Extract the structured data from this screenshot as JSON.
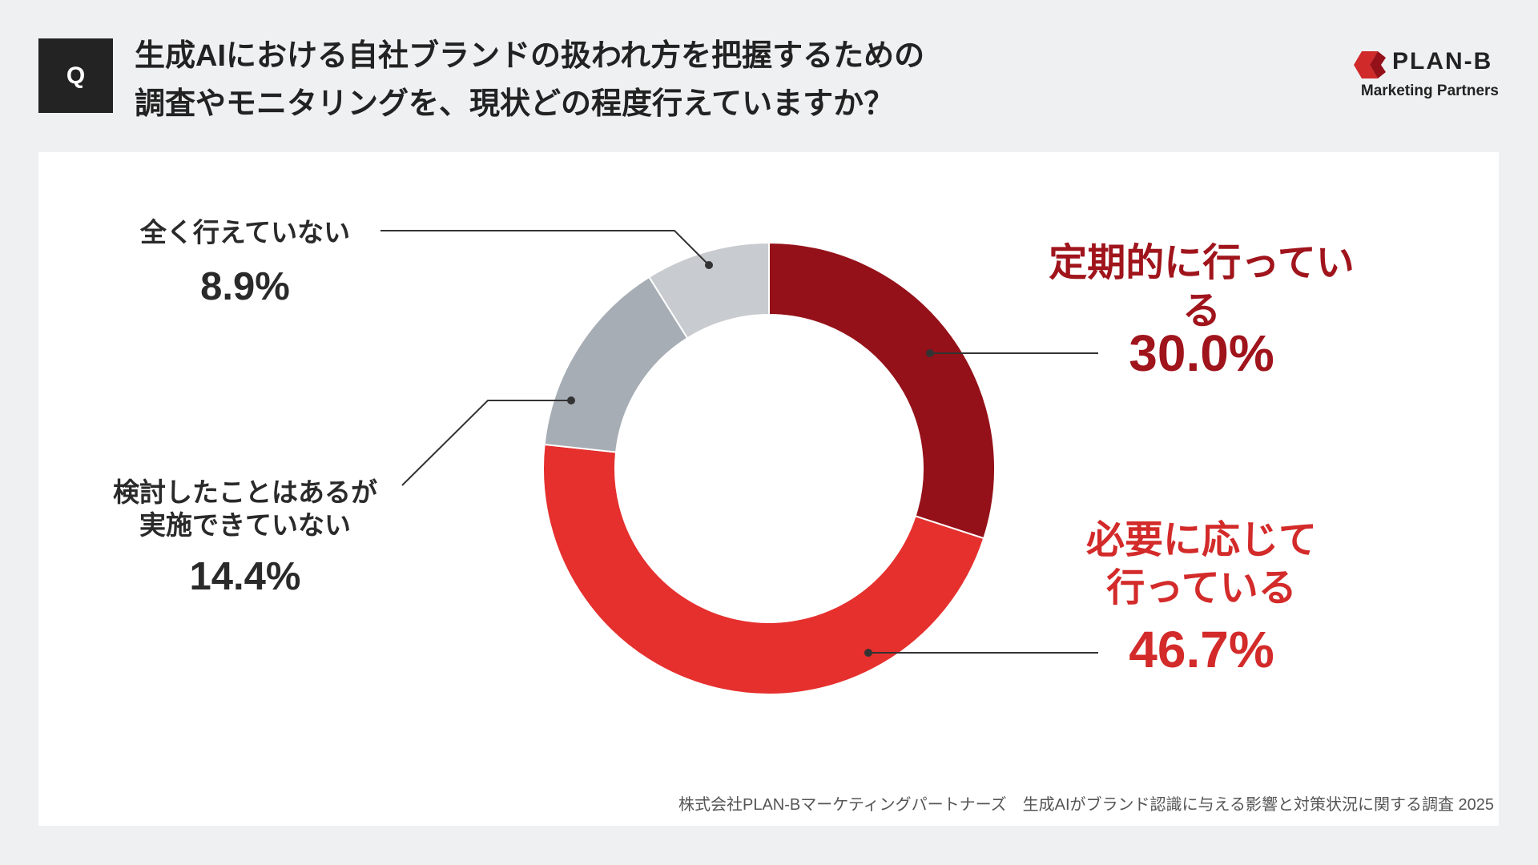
{
  "badge": "Q",
  "logo": {
    "name": "PLAN-B",
    "subtitle": "Marketing Partners"
  },
  "source": "株式会社PLAN-Bマーケティングパートナーズ　生成AIがブランド認識に与える影響と対策状況に関する調査 2025",
  "chart_data": {
    "type": "donut",
    "title": "生成AIにおける自社ブランドの扱われ方を把握するための\n調査やモニタリングを、現状どの程度行えていますか？",
    "categories": [
      "定期的に行っている",
      "必要に応じて\n行っている",
      "検討したことはあるが\n実施できていない",
      "全く行えていない"
    ],
    "values": [
      30.0,
      46.7,
      14.4,
      8.9
    ],
    "value_labels": [
      "30.0%",
      "46.7%",
      "14.4%",
      "8.9%"
    ],
    "colors": [
      "#951119",
      "#e5302e",
      "#a6adb4",
      "#c8cbcf"
    ]
  }
}
